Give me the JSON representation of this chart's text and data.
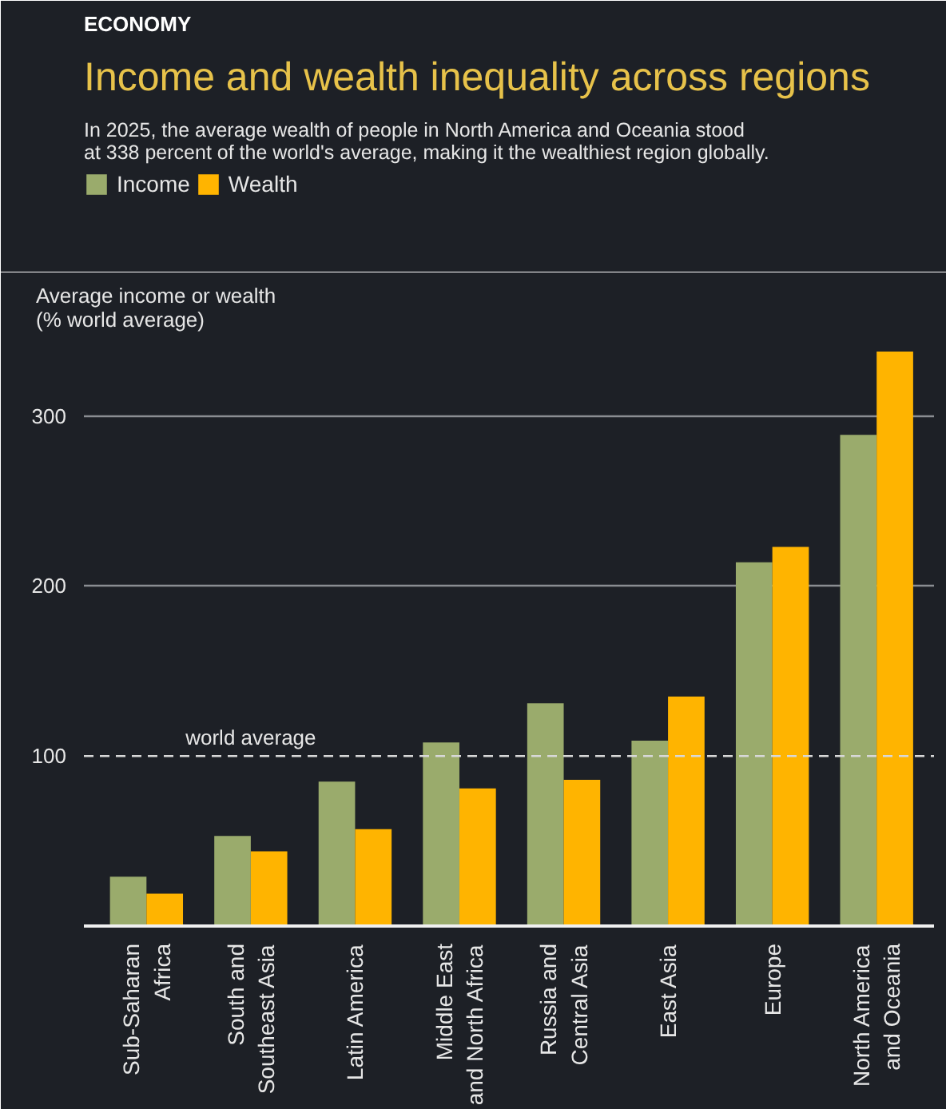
{
  "chart_data": {
    "type": "bar",
    "title": "Income and wealth inequality across regions",
    "subtitle": "In 2025, the average wealth of people in North America and Oceania stood\nat 338 percent of the world's average, making it the wealthiest region globally.",
    "ylabel": "Average income or wealth\n(% world average)",
    "annotations": [
      "ECONOMY"
    ],
    "categories": [
      "Sub-Saharan\nAfrica",
      "South and\nSoutheast Asia",
      "Latin America",
      "Middle East\nand North Africa",
      "Russia and\nCentral Asia",
      "East Asia",
      "Europe",
      "North America\nand Oceania"
    ],
    "series": [
      {
        "name": "Income",
        "color": "#9aab6c",
        "values": [
          29,
          53,
          85,
          108,
          131,
          109,
          214,
          289
        ]
      },
      {
        "name": "Wealth",
        "color": "#ffb400",
        "values": [
          19,
          44,
          57,
          81,
          86,
          135,
          223,
          338
        ]
      }
    ],
    "ylim": [
      0,
      345
    ],
    "yticks": [
      100,
      200,
      300
    ],
    "grid": "y",
    "legend": "top left",
    "ref_lines": [
      {
        "axis": "y",
        "value": 100,
        "label": "world average",
        "line_style": "dashed",
        "color": "#d8d8d8"
      }
    ]
  }
}
